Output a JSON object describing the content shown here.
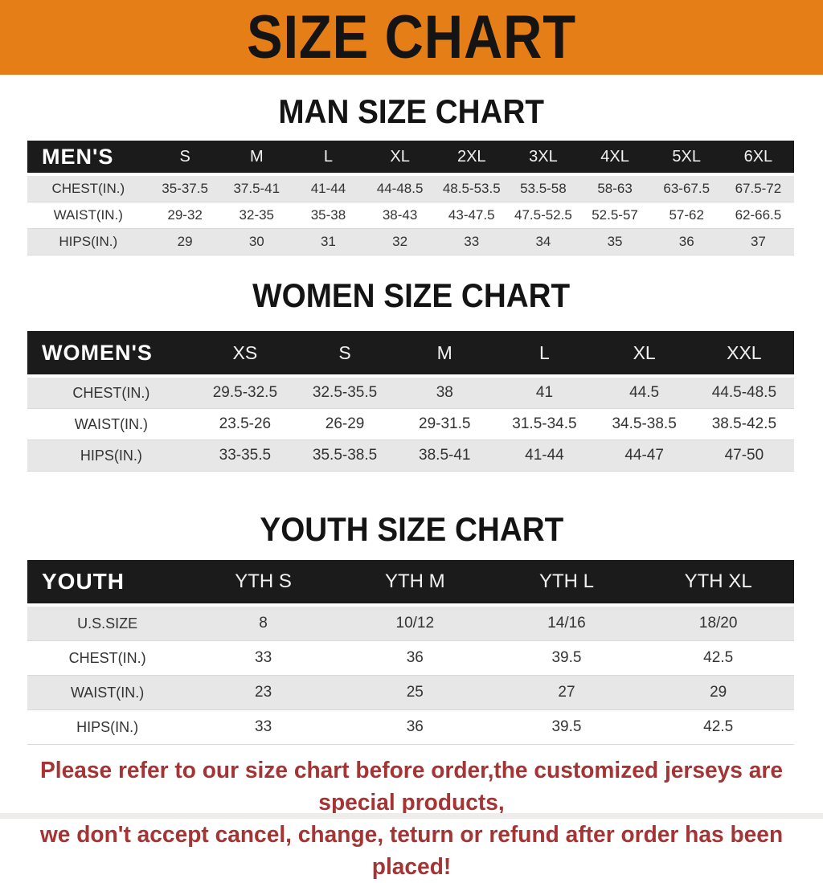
{
  "banner": {
    "title": "SIZE CHART"
  },
  "colors": {
    "banner_bg": "#e67e17",
    "table_header_bg": "#1b1b1b",
    "row_alt_bg": "#e7e7e7",
    "heading_text": "#141414",
    "footer_text": "#a53434"
  },
  "sections": [
    {
      "heading": "MAN SIZE CHART",
      "table": {
        "title": "MEN'S",
        "sizes": [
          "S",
          "M",
          "L",
          "XL",
          "2XL",
          "3XL",
          "4XL",
          "5XL",
          "6XL"
        ],
        "rows": [
          {
            "label": "CHEST(IN.)",
            "values": [
              "35-37.5",
              "37.5-41",
              "41-44",
              "44-48.5",
              "48.5-53.5",
              "53.5-58",
              "58-63",
              "63-67.5",
              "67.5-72"
            ]
          },
          {
            "label": "WAIST(IN.)",
            "values": [
              "29-32",
              "32-35",
              "35-38",
              "38-43",
              "43-47.5",
              "47.5-52.5",
              "52.5-57",
              "57-62",
              "62-66.5"
            ]
          },
          {
            "label": "HIPS(IN.)",
            "values": [
              "29",
              "30",
              "31",
              "32",
              "33",
              "34",
              "35",
              "36",
              "37"
            ]
          }
        ]
      }
    },
    {
      "heading": "WOMEN SIZE CHART",
      "table": {
        "title": "WOMEN'S",
        "sizes": [
          "XS",
          "S",
          "M",
          "L",
          "XL",
          "XXL"
        ],
        "rows": [
          {
            "label": "CHEST(IN.)",
            "values": [
              "29.5-32.5",
              "32.5-35.5",
              "38",
              "41",
              "44.5",
              "44.5-48.5"
            ]
          },
          {
            "label": "WAIST(IN.)",
            "values": [
              "23.5-26",
              "26-29",
              "29-31.5",
              "31.5-34.5",
              "34.5-38.5",
              "38.5-42.5"
            ]
          },
          {
            "label": "HIPS(IN.)",
            "values": [
              "33-35.5",
              "35.5-38.5",
              "38.5-41",
              "41-44",
              "44-47",
              "47-50"
            ]
          }
        ]
      }
    },
    {
      "heading": "YOUTH SIZE CHART",
      "table": {
        "title": "YOUTH",
        "sizes": [
          "YTH S",
          "YTH M",
          "YTH L",
          "YTH XL"
        ],
        "rows": [
          {
            "label": "U.S.SIZE",
            "values": [
              "8",
              "10/12",
              "14/16",
              "18/20"
            ]
          },
          {
            "label": "CHEST(IN.)",
            "values": [
              "33",
              "36",
              "39.5",
              "42.5"
            ]
          },
          {
            "label": "WAIST(IN.)",
            "values": [
              "23",
              "25",
              "27",
              "29"
            ]
          },
          {
            "label": "HIPS(IN.)",
            "values": [
              "33",
              "36",
              "39.5",
              "42.5"
            ]
          }
        ]
      }
    }
  ],
  "footer": {
    "line1": "Please refer to our size chart before order,the customized jerseys are special products,",
    "line2": "we don't accept cancel, change, teturn or refund after order has been placed!"
  }
}
